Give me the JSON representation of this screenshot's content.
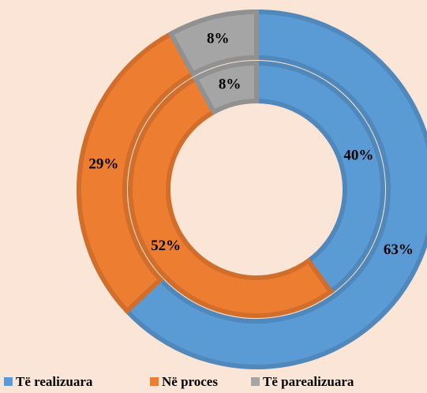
{
  "chart_data": {
    "type": "donut",
    "categories": [
      "Të realizuara",
      "Në proces",
      "Të parealizuara"
    ],
    "colors": [
      "#5b9bd5",
      "#ed7d31",
      "#a5a5a5"
    ],
    "series": [
      {
        "values": [
          63,
          29,
          8
        ],
        "value_labels": [
          "63%",
          "29%",
          "8%"
        ]
      },
      {
        "values": [
          40,
          52,
          8
        ],
        "value_labels": [
          "40%",
          "52%",
          "8%"
        ]
      }
    ],
    "legend": "bottom"
  }
}
